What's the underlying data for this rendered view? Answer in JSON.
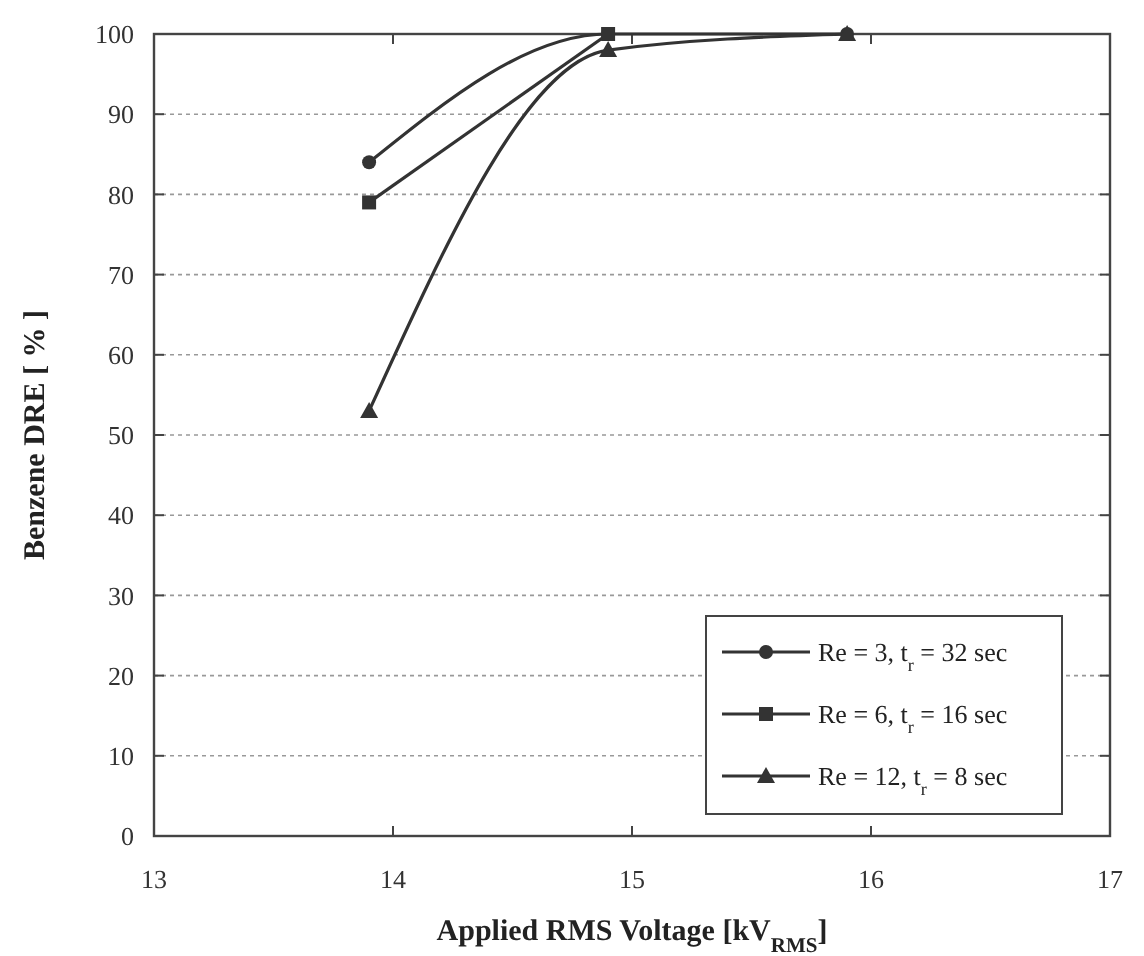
{
  "chart_data": {
    "type": "line",
    "xlabel": "Applied RMS Voltage [kV$_{RMS}$]",
    "ylabel": "Benzene DRE [ % ]",
    "x": [
      13.9,
      14.9,
      15.9
    ],
    "series": [
      {
        "name": "Re = 3, t$_{r}$ = 32 sec",
        "color": "#333333",
        "marker": "circle",
        "values": [
          84,
          100,
          100
        ]
      },
      {
        "name": "Re = 6, t$_{r}$ = 16 sec",
        "color": "#333333",
        "marker": "square",
        "values": [
          79,
          100,
          null
        ]
      },
      {
        "name": "Re = 12, t$_{r}$ = 8 sec",
        "color": "#333333",
        "marker": "triangle",
        "values": [
          53,
          98,
          100
        ]
      }
    ],
    "xlim": [
      13,
      17
    ],
    "xticks": [
      13,
      14,
      15,
      16,
      17
    ],
    "ylim": [
      0,
      100
    ],
    "yticks": [
      0,
      10,
      20,
      30,
      40,
      50,
      60,
      70,
      80,
      90,
      100
    ],
    "grid": "y",
    "legend": "bottom right",
    "line_style": "solid"
  }
}
